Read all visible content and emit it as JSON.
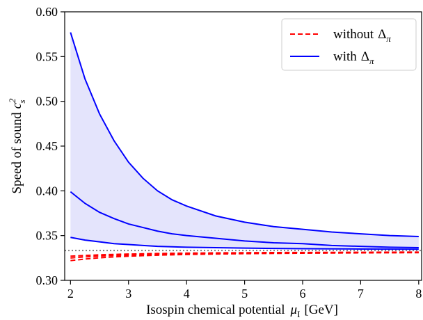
{
  "chart_data": {
    "type": "line",
    "xlabel": "Isospin chemical potential",
    "xlabel_symbol": "μ",
    "xlabel_subscript": "I",
    "xlabel_unit": "[GeV]",
    "ylabel": "Speed of sound",
    "ylabel_symbol": "c",
    "ylabel_sup": "2",
    "ylabel_sub": "s",
    "xlim": [
      1.9,
      8.05
    ],
    "ylim": [
      0.3,
      0.6
    ],
    "xticks": [
      "2",
      "3",
      "4",
      "5",
      "6",
      "7",
      "8"
    ],
    "xtick_values": [
      2,
      3,
      4,
      5,
      6,
      7,
      8
    ],
    "yticks": [
      "0.30",
      "0.35",
      "0.40",
      "0.45",
      "0.50",
      "0.55",
      "0.60"
    ],
    "ytick_values": [
      0.3,
      0.35,
      0.4,
      0.45,
      0.5,
      0.55,
      0.6
    ],
    "grid": false,
    "legend_position": "top-right",
    "legend": [
      {
        "label": "without",
        "symbol": "Δ",
        "sub": "π",
        "style": "dashed",
        "color": "#ff0000"
      },
      {
        "label": "with",
        "symbol": "Δ",
        "sub": "π",
        "style": "solid",
        "color": "#0000ff"
      }
    ],
    "reference_line": {
      "y": 0.3333,
      "style": "dotted",
      "color": "#808080"
    },
    "band": {
      "color": "#e4e4fc",
      "between": [
        "with-upper",
        "with-lower"
      ]
    },
    "x": [
      2.0,
      2.25,
      2.5,
      2.75,
      3.0,
      3.25,
      3.5,
      3.75,
      4.0,
      4.5,
      5.0,
      5.5,
      6.0,
      6.5,
      7.0,
      7.5,
      8.0
    ],
    "series": [
      {
        "id": "with-upper",
        "style": "solid",
        "color": "#0000ff",
        "values": [
          0.577,
          0.525,
          0.486,
          0.456,
          0.432,
          0.414,
          0.4,
          0.39,
          0.383,
          0.372,
          0.365,
          0.36,
          0.357,
          0.354,
          0.352,
          0.35,
          0.349
        ]
      },
      {
        "id": "with-middle",
        "style": "solid",
        "color": "#0000ff",
        "values": [
          0.399,
          0.386,
          0.376,
          0.369,
          0.363,
          0.359,
          0.355,
          0.352,
          0.35,
          0.347,
          0.344,
          0.342,
          0.341,
          0.339,
          0.338,
          0.337,
          0.3365
        ]
      },
      {
        "id": "with-lower",
        "style": "solid",
        "color": "#0000ff",
        "values": [
          0.348,
          0.345,
          0.343,
          0.341,
          0.34,
          0.339,
          0.338,
          0.3375,
          0.337,
          0.3365,
          0.336,
          0.3357,
          0.3354,
          0.3352,
          0.335,
          0.3349,
          0.3348
        ]
      },
      {
        "id": "without-1",
        "style": "dashed",
        "color": "#ff0000",
        "values": [
          0.327,
          0.3278,
          0.3285,
          0.329,
          0.3294,
          0.3297,
          0.33,
          0.3302,
          0.3304,
          0.3307,
          0.3309,
          0.3311,
          0.3312,
          0.3313,
          0.3314,
          0.3315,
          0.3316
        ]
      },
      {
        "id": "without-2",
        "style": "dashed",
        "color": "#ff0000",
        "values": [
          0.325,
          0.3262,
          0.3271,
          0.3278,
          0.3284,
          0.3288,
          0.3292,
          0.3295,
          0.3298,
          0.3302,
          0.3305,
          0.3307,
          0.3309,
          0.331,
          0.3311,
          0.3312,
          0.3313
        ]
      },
      {
        "id": "without-3",
        "style": "dashed",
        "color": "#ff0000",
        "values": [
          0.322,
          0.3238,
          0.3252,
          0.3262,
          0.327,
          0.3276,
          0.3281,
          0.3285,
          0.3289,
          0.3294,
          0.3298,
          0.3301,
          0.3303,
          0.3305,
          0.3307,
          0.3308,
          0.3309
        ]
      }
    ]
  }
}
